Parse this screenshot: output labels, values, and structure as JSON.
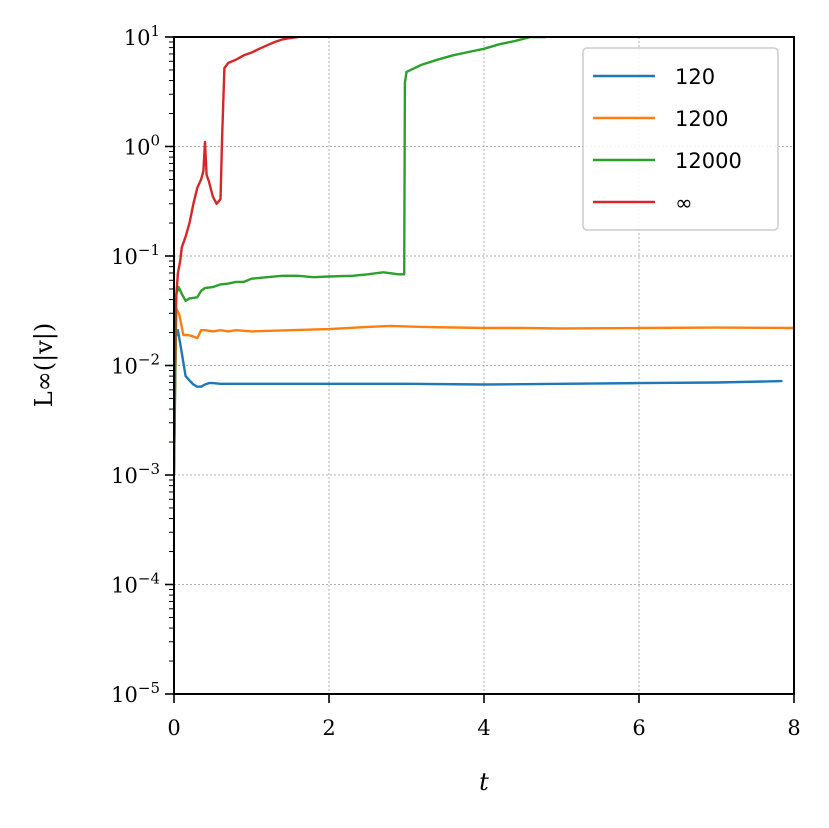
{
  "chart_data": {
    "type": "line",
    "title": "",
    "xlabel": "t",
    "ylabel": "L∞(|v|)",
    "xscale": "linear",
    "yscale": "log",
    "xlim": [
      0,
      8
    ],
    "ylim": [
      1e-05,
      10
    ],
    "xticks": [
      0,
      2,
      4,
      6,
      8
    ],
    "xtick_labels": [
      "0",
      "2",
      "4",
      "6",
      "8"
    ],
    "yticks": [
      1e-05,
      0.0001,
      0.001,
      0.01,
      0.1,
      1,
      10
    ],
    "ytick_exponents": [
      "−5",
      "−4",
      "−3",
      "−2",
      "−1",
      "0",
      "1"
    ],
    "ytick_base": "10",
    "grid": true,
    "legend": "top-right",
    "series": [
      {
        "name": "120",
        "color": "#1f77b4",
        "x": [
          0,
          0.02,
          0.05,
          0.1,
          0.15,
          0.2,
          0.25,
          0.3,
          0.35,
          0.4,
          0.45,
          0.5,
          0.6,
          0.7,
          0.8,
          1.0,
          1.5,
          2.0,
          3.0,
          4.0,
          5.0,
          6.0,
          7.0,
          7.85
        ],
        "y": [
          0.0012,
          0.018,
          0.021,
          0.013,
          0.008,
          0.0073,
          0.0067,
          0.0064,
          0.0064,
          0.0067,
          0.0069,
          0.0069,
          0.0068,
          0.0068,
          0.0068,
          0.0068,
          0.0068,
          0.0068,
          0.0068,
          0.0067,
          0.0068,
          0.0069,
          0.007,
          0.0072
        ]
      },
      {
        "name": "1200",
        "color": "#ff7f0e",
        "x": [
          0,
          0.03,
          0.07,
          0.12,
          0.18,
          0.24,
          0.3,
          0.35,
          0.4,
          0.5,
          0.6,
          0.7,
          0.8,
          1.0,
          1.5,
          2.0,
          2.5,
          2.8,
          3.2,
          4.0,
          4.5,
          5.0,
          6.0,
          7.0,
          8.0
        ],
        "y": [
          0.0015,
          0.033,
          0.029,
          0.019,
          0.019,
          0.0185,
          0.0178,
          0.021,
          0.021,
          0.0205,
          0.021,
          0.0205,
          0.021,
          0.0205,
          0.021,
          0.0215,
          0.0225,
          0.023,
          0.0225,
          0.022,
          0.022,
          0.0218,
          0.022,
          0.0222,
          0.022
        ]
      },
      {
        "name": "12000",
        "color": "#2ca02c",
        "x": [
          0,
          0.03,
          0.06,
          0.1,
          0.15,
          0.2,
          0.3,
          0.35,
          0.4,
          0.5,
          0.6,
          0.7,
          0.8,
          0.9,
          1.0,
          1.2,
          1.4,
          1.6,
          1.8,
          2.0,
          2.3,
          2.5,
          2.7,
          2.9,
          2.97,
          2.98,
          3.0,
          3.2,
          3.4,
          3.6,
          3.8,
          4.0,
          4.2,
          4.4,
          4.6,
          4.8
        ],
        "y": [
          0.001,
          0.045,
          0.052,
          0.045,
          0.039,
          0.041,
          0.042,
          0.048,
          0.051,
          0.052,
          0.055,
          0.056,
          0.058,
          0.058,
          0.062,
          0.064,
          0.066,
          0.066,
          0.064,
          0.065,
          0.066,
          0.068,
          0.071,
          0.068,
          0.068,
          3.8,
          4.8,
          5.6,
          6.2,
          6.8,
          7.3,
          7.8,
          8.6,
          9.2,
          10,
          10
        ]
      },
      {
        "name": "∞",
        "color": "#d62728",
        "x": [
          0,
          0.02,
          0.05,
          0.08,
          0.1,
          0.15,
          0.2,
          0.25,
          0.3,
          0.35,
          0.38,
          0.4,
          0.42,
          0.45,
          0.5,
          0.55,
          0.6,
          0.62,
          0.65,
          0.7,
          0.8,
          0.9,
          1.0,
          1.1,
          1.2,
          1.3,
          1.4,
          1.5,
          1.6
        ],
        "y": [
          0.001,
          0.035,
          0.07,
          0.09,
          0.12,
          0.15,
          0.2,
          0.3,
          0.42,
          0.5,
          0.6,
          1.1,
          0.55,
          0.48,
          0.35,
          0.3,
          0.33,
          1.2,
          5.2,
          5.8,
          6.2,
          6.8,
          7.2,
          7.8,
          8.4,
          9.0,
          9.5,
          9.8,
          10
        ]
      }
    ]
  }
}
